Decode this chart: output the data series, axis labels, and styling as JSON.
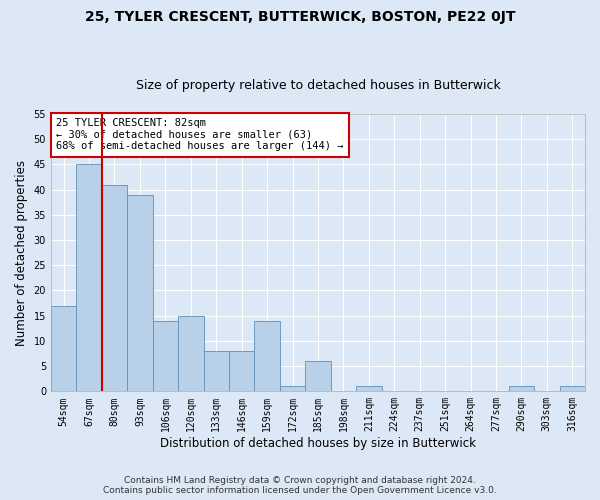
{
  "title": "25, TYLER CRESCENT, BUTTERWICK, BOSTON, PE22 0JT",
  "subtitle": "Size of property relative to detached houses in Butterwick",
  "xlabel": "Distribution of detached houses by size in Butterwick",
  "ylabel": "Number of detached properties",
  "categories": [
    "54sqm",
    "67sqm",
    "80sqm",
    "93sqm",
    "106sqm",
    "120sqm",
    "133sqm",
    "146sqm",
    "159sqm",
    "172sqm",
    "185sqm",
    "198sqm",
    "211sqm",
    "224sqm",
    "237sqm",
    "251sqm",
    "264sqm",
    "277sqm",
    "290sqm",
    "303sqm",
    "316sqm"
  ],
  "values": [
    17,
    45,
    41,
    39,
    14,
    15,
    8,
    8,
    14,
    1,
    6,
    0,
    1,
    0,
    0,
    0,
    0,
    0,
    1,
    0,
    1
  ],
  "bar_color": "#b8d0e8",
  "bar_edge_color": "#6090b8",
  "vline_color": "#cc0000",
  "annotation_text": "25 TYLER CRESCENT: 82sqm\n← 30% of detached houses are smaller (63)\n68% of semi-detached houses are larger (144) →",
  "annotation_box_color": "#ffffff",
  "annotation_box_edge": "#cc0000",
  "background_color": "#dce8f5",
  "plot_background": "#dce8f5",
  "grid_color": "#ffffff",
  "ylim": [
    0,
    55
  ],
  "yticks": [
    0,
    5,
    10,
    15,
    20,
    25,
    30,
    35,
    40,
    45,
    50,
    55
  ],
  "footer_line1": "Contains HM Land Registry data © Crown copyright and database right 2024.",
  "footer_line2": "Contains public sector information licensed under the Open Government Licence v3.0.",
  "title_fontsize": 10,
  "subtitle_fontsize": 9,
  "label_fontsize": 8.5,
  "tick_fontsize": 7,
  "footer_fontsize": 6.5,
  "annot_fontsize": 7.5
}
